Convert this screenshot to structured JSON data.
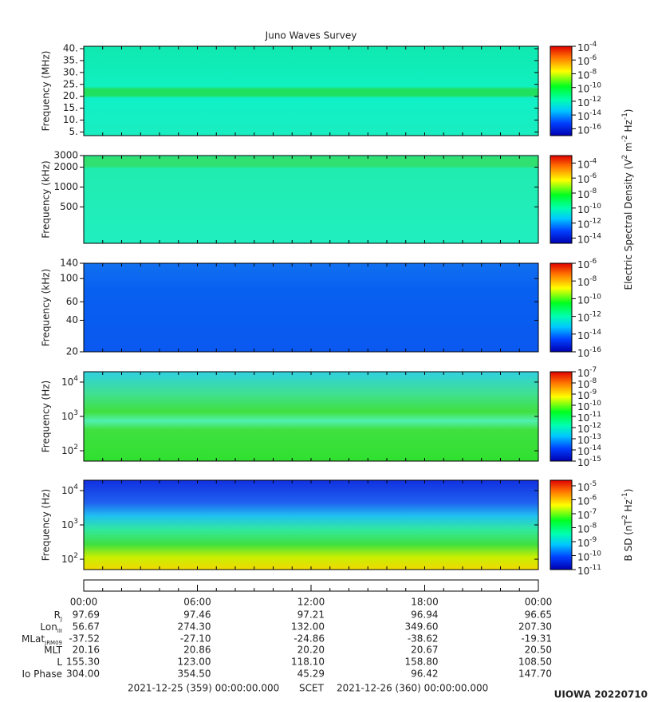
{
  "chart_data": {
    "type": "spectrogram",
    "title": "Juno Waves Survey",
    "xticks": [
      "00:00",
      "06:00",
      "12:00",
      "18:00",
      "00:00"
    ],
    "panels": [
      {
        "ylabel": "Frequency (MHz)",
        "yscale": "linear",
        "ylim": [
          3.5,
          41
        ],
        "yticks": [
          {
            "value": 5,
            "label": "5."
          },
          {
            "value": 10,
            "label": "10."
          },
          {
            "value": 15,
            "label": "15."
          },
          {
            "value": 20,
            "label": "20."
          },
          {
            "value": 25,
            "label": "25."
          },
          {
            "value": 30,
            "label": "30."
          },
          {
            "value": 35,
            "label": "35."
          },
          {
            "value": 40,
            "label": "40."
          }
        ],
        "clim": [
          1e-17,
          0.0001
        ],
        "cticks": [
          {
            "value": 0.0001,
            "base": "10",
            "exponent": "-4"
          },
          {
            "value": 1e-06,
            "base": "10",
            "exponent": "-6"
          },
          {
            "value": 1e-08,
            "base": "10",
            "exponent": "-8"
          },
          {
            "value": 1e-10,
            "base": "10",
            "exponent": "-10"
          },
          {
            "value": 1e-12,
            "base": "10",
            "exponent": "-12"
          },
          {
            "value": 1e-14,
            "base": "10",
            "exponent": "-14"
          },
          {
            "value": 1e-16,
            "base": "10",
            "exponent": "-16"
          }
        ]
      },
      {
        "ylabel": "Frequency (kHz)",
        "yscale": "log",
        "ylim": [
          140,
          3000
        ],
        "yticks": [
          500,
          1000,
          2000,
          3000
        ],
        "clim": [
          2e-15,
          0.001
        ],
        "cticks": [
          {
            "value": 0.0001,
            "base": "10",
            "exponent": "-4"
          },
          {
            "value": 1e-06,
            "base": "10",
            "exponent": "-6"
          },
          {
            "value": 1e-08,
            "base": "10",
            "exponent": "-8"
          },
          {
            "value": 1e-10,
            "base": "10",
            "exponent": "-10"
          },
          {
            "value": 1e-12,
            "base": "10",
            "exponent": "-12"
          },
          {
            "value": 1e-14,
            "base": "10",
            "exponent": "-14"
          }
        ]
      },
      {
        "ylabel": "Frequency (kHz)",
        "yscale": "log",
        "ylim": [
          20,
          140
        ],
        "yticks": [
          20,
          40,
          60,
          100,
          140
        ],
        "clim": [
          1e-16,
          1e-06
        ],
        "cticks": [
          {
            "value": 1e-06,
            "base": "10",
            "exponent": "-6"
          },
          {
            "value": 1e-08,
            "base": "10",
            "exponent": "-8"
          },
          {
            "value": 1e-10,
            "base": "10",
            "exponent": "-10"
          },
          {
            "value": 1e-12,
            "base": "10",
            "exponent": "-12"
          },
          {
            "value": 1e-14,
            "base": "10",
            "exponent": "-14"
          },
          {
            "value": 1e-16,
            "base": "10",
            "exponent": "-16"
          }
        ]
      },
      {
        "ylabel": "Frequency (Hz)",
        "yscale": "log",
        "ylim": [
          50,
          20000
        ],
        "yticks": [
          {
            "value": 100,
            "base": "10",
            "exponent": "2"
          },
          {
            "value": 1000,
            "base": "10",
            "exponent": "3"
          },
          {
            "value": 10000,
            "base": "10",
            "exponent": "4"
          }
        ],
        "clim": [
          1e-15,
          1e-07
        ],
        "cticks": [
          {
            "value": 1e-07,
            "base": "10",
            "exponent": "-7"
          },
          {
            "value": 1e-08,
            "base": "10",
            "exponent": "-8"
          },
          {
            "value": 1e-09,
            "base": "10",
            "exponent": "-9"
          },
          {
            "value": 1e-10,
            "base": "10",
            "exponent": "-10"
          },
          {
            "value": 1e-11,
            "base": "10",
            "exponent": "-11"
          },
          {
            "value": 1e-12,
            "base": "10",
            "exponent": "-12"
          },
          {
            "value": 1e-13,
            "base": "10",
            "exponent": "-13"
          },
          {
            "value": 1e-14,
            "base": "10",
            "exponent": "-14"
          },
          {
            "value": 1e-15,
            "base": "10",
            "exponent": "-15"
          }
        ]
      },
      {
        "ylabel": "Frequency (Hz)",
        "yscale": "log",
        "ylim": [
          50,
          20000
        ],
        "yticks": [
          {
            "value": 100,
            "base": "10",
            "exponent": "2"
          },
          {
            "value": 1000,
            "base": "10",
            "exponent": "3"
          },
          {
            "value": 10000,
            "base": "10",
            "exponent": "4"
          }
        ],
        "clim": [
          1e-11,
          2.5e-05
        ],
        "cticks": [
          {
            "value": 1e-05,
            "base": "10",
            "exponent": "-5"
          },
          {
            "value": 1e-06,
            "base": "10",
            "exponent": "-6"
          },
          {
            "value": 1e-07,
            "base": "10",
            "exponent": "-7"
          },
          {
            "value": 1e-08,
            "base": "10",
            "exponent": "-8"
          },
          {
            "value": 1e-09,
            "base": "10",
            "exponent": "-9"
          },
          {
            "value": 1e-10,
            "base": "10",
            "exponent": "-10"
          },
          {
            "value": 1e-11,
            "base": "10",
            "exponent": "-11"
          }
        ]
      }
    ],
    "colorbar_labels": [
      [
        {
          "text": "Electric Spectral Density (V"
        },
        {
          "sup": "2"
        },
        {
          "text": " m"
        },
        {
          "sup": "-2"
        },
        {
          "text": " Hz"
        },
        {
          "sup": "-1"
        },
        {
          "text": ")"
        }
      ],
      [
        {
          "text": "B SD (nT"
        },
        {
          "sup": "2"
        },
        {
          "text": " Hz"
        },
        {
          "sup": "-1"
        },
        {
          "text": ")"
        }
      ]
    ]
  },
  "ephemeris": {
    "rows": [
      {
        "label": "R",
        "sub": "J",
        "values": [
          "97.69",
          "97.46",
          "97.21",
          "96.94",
          "96.65"
        ]
      },
      {
        "label": "Lon",
        "sub": "III",
        "values": [
          "56.67",
          "274.30",
          "132.00",
          "349.60",
          "207.30"
        ]
      },
      {
        "label": "MLat",
        "sub": "JRM09",
        "values": [
          "-37.52",
          "-27.10",
          "-24.86",
          "-38.62",
          "-19.31"
        ]
      },
      {
        "label": "MLT",
        "values": [
          "20.16",
          "20.86",
          "20.20",
          "20.67",
          "20.50"
        ]
      },
      {
        "label": "L",
        "values": [
          "155.30",
          "123.00",
          "118.10",
          "158.80",
          "108.50"
        ]
      },
      {
        "label": "Io Phase",
        "values": [
          "304.00",
          "354.50",
          "45.29",
          "96.42",
          "147.70"
        ]
      }
    ]
  },
  "footer": {
    "start": "2021-12-25 (359) 00:00:00.000",
    "scet": "SCET",
    "end": "2021-12-26 (360) 00:00:00.000",
    "credit": "UIOWA 20220710"
  }
}
